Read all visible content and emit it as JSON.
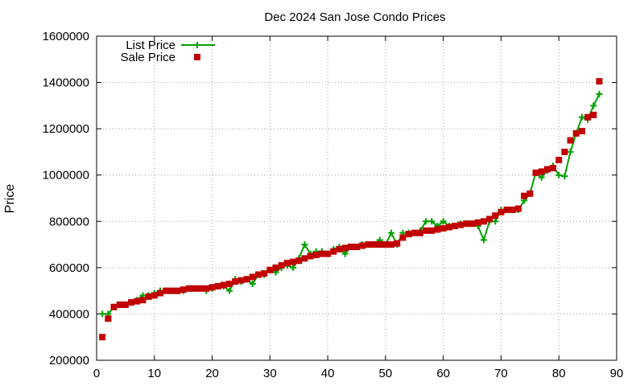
{
  "chart_data": {
    "type": "line",
    "title": "Dec 2024 San Jose Condo Prices",
    "xlabel": "",
    "ylabel": "Price",
    "xlim": [
      0,
      90
    ],
    "ylim": [
      200000,
      1600000
    ],
    "x_ticks": [
      "0",
      "10",
      "20",
      "30",
      "40",
      "50",
      "60",
      "70",
      "80",
      "90"
    ],
    "y_ticks": [
      "200000",
      "400000",
      "600000",
      "800000",
      "1000000",
      "1200000",
      "1400000",
      "1600000"
    ],
    "grid": "dotted",
    "legend_position": "top-left",
    "x": [
      1,
      2,
      3,
      4,
      5,
      6,
      7,
      8,
      9,
      10,
      11,
      12,
      13,
      14,
      15,
      16,
      17,
      18,
      19,
      20,
      21,
      22,
      23,
      24,
      25,
      26,
      27,
      28,
      29,
      30,
      31,
      32,
      33,
      34,
      35,
      36,
      37,
      38,
      39,
      40,
      41,
      42,
      43,
      44,
      45,
      46,
      47,
      48,
      49,
      50,
      51,
      52,
      53,
      54,
      55,
      56,
      57,
      58,
      59,
      60,
      61,
      62,
      63,
      64,
      65,
      66,
      67,
      68,
      69,
      70,
      71,
      72,
      73,
      74,
      75,
      76,
      77,
      78,
      79,
      80,
      81,
      82,
      83,
      84,
      85,
      86,
      87
    ],
    "series": [
      {
        "name": "List Price",
        "color": "#00a000",
        "marker": "plus",
        "values": [
          400000,
          400000,
          430000,
          440000,
          440000,
          450000,
          460000,
          480000,
          480000,
          490000,
          500000,
          500000,
          500000,
          500000,
          500000,
          510000,
          510000,
          510000,
          500000,
          510000,
          520000,
          520000,
          500000,
          550000,
          540000,
          550000,
          530000,
          570000,
          570000,
          590000,
          580000,
          600000,
          610000,
          600000,
          640000,
          700000,
          660000,
          670000,
          670000,
          660000,
          680000,
          690000,
          660000,
          690000,
          690000,
          700000,
          700000,
          700000,
          720000,
          700000,
          750000,
          700000,
          750000,
          750000,
          750000,
          760000,
          800000,
          800000,
          780000,
          800000,
          780000,
          780000,
          790000,
          790000,
          790000,
          780000,
          720000,
          800000,
          800000,
          850000,
          850000,
          850000,
          850000,
          890000,
          920000,
          1010000,
          990000,
          1020000,
          1040000,
          1000000,
          995000,
          1100000,
          1180000,
          1250000,
          1240000,
          1300000,
          1350000
        ]
      },
      {
        "name": "Sale Price",
        "color": "#c00000",
        "marker": "square",
        "values": [
          300000,
          380000,
          430000,
          440000,
          440000,
          450000,
          455000,
          460000,
          475000,
          480000,
          490000,
          500000,
          500000,
          500000,
          505000,
          510000,
          510000,
          510000,
          510000,
          515000,
          520000,
          525000,
          530000,
          540000,
          545000,
          550000,
          560000,
          570000,
          575000,
          590000,
          600000,
          610000,
          620000,
          625000,
          630000,
          640000,
          650000,
          655000,
          660000,
          660000,
          670000,
          680000,
          685000,
          690000,
          690000,
          695000,
          700000,
          700000,
          700000,
          700000,
          700000,
          705000,
          730000,
          745000,
          750000,
          750000,
          760000,
          760000,
          765000,
          770000,
          775000,
          780000,
          785000,
          790000,
          790000,
          795000,
          800000,
          810000,
          825000,
          840000,
          850000,
          850000,
          855000,
          910000,
          920000,
          1010000,
          1015000,
          1025000,
          1030000,
          1065000,
          1100000,
          1150000,
          1180000,
          1190000,
          1250000,
          1260000,
          1405000
        ]
      }
    ]
  }
}
